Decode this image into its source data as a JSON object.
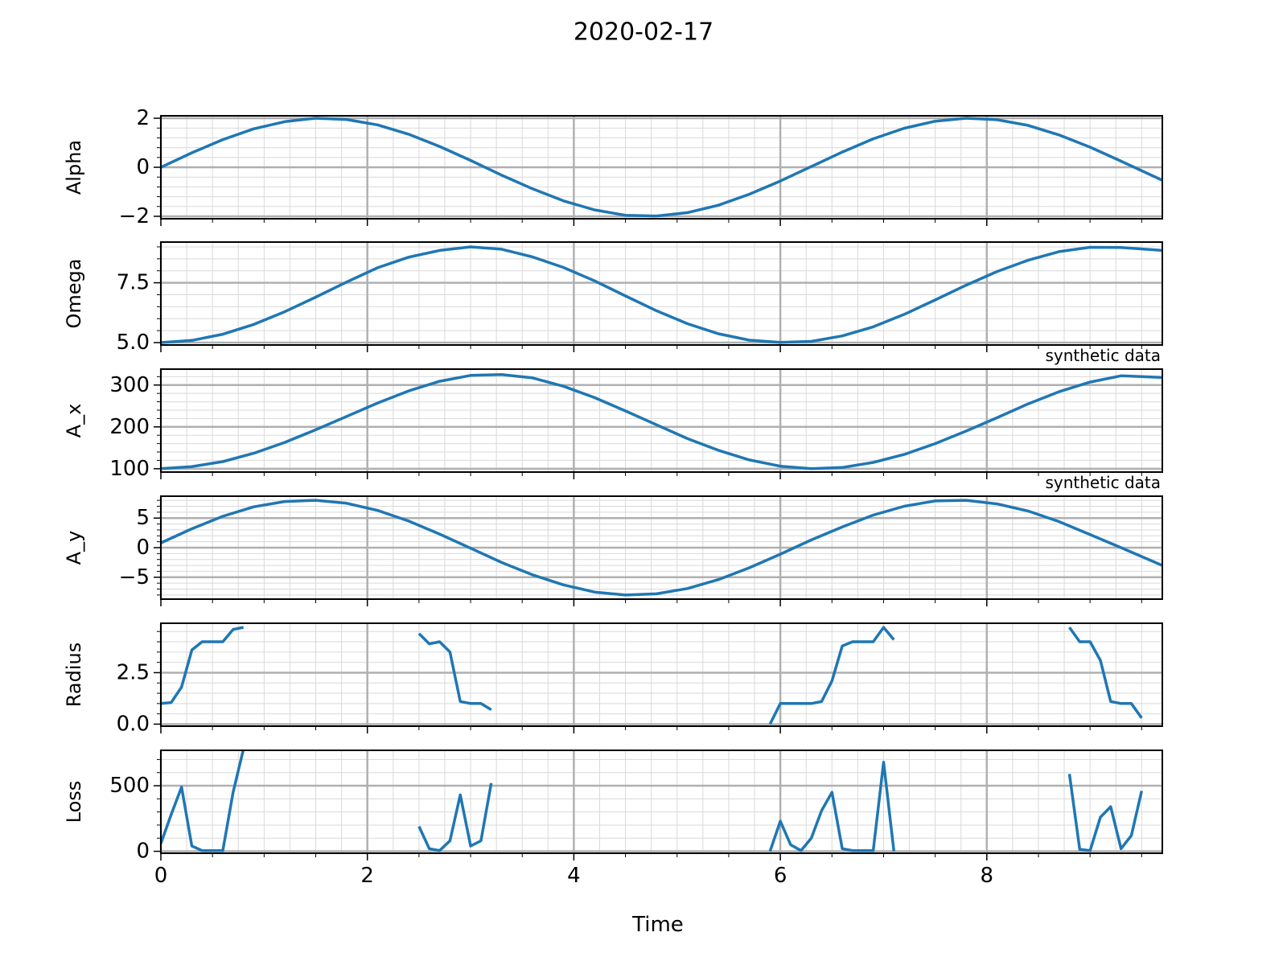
{
  "figure": {
    "title": "2020-02-17",
    "xlabel": "Time",
    "line_color": "#1f77b4",
    "grid_major_color": "#b0b0b0",
    "grid_minor_color": "#d9d9d9"
  },
  "chart_data": [
    {
      "type": "line",
      "ylabel": "Alpha",
      "xlim": [
        0,
        9.7
      ],
      "ylim": [
        -2.1,
        2.1
      ],
      "xticks": [
        0,
        2,
        4,
        6,
        8
      ],
      "yticks": [
        -2,
        0,
        2
      ],
      "ytick_labels": [
        "−2",
        "0",
        "2"
      ],
      "grid": true,
      "annotation": "",
      "series": [
        {
          "x": [
            0,
            0.3,
            0.6,
            0.9,
            1.2,
            1.5,
            1.8,
            2.1,
            2.4,
            2.7,
            3.0,
            3.3,
            3.6,
            3.9,
            4.2,
            4.5,
            4.8,
            5.1,
            5.4,
            5.7,
            6.0,
            6.3,
            6.6,
            6.9,
            7.2,
            7.5,
            7.8,
            8.1,
            8.4,
            8.7,
            9.0,
            9.3,
            9.7
          ],
          "y": [
            0.0,
            0.59,
            1.13,
            1.57,
            1.86,
            2.0,
            1.95,
            1.73,
            1.35,
            0.85,
            0.28,
            -0.32,
            -0.88,
            -1.37,
            -1.74,
            -1.96,
            -1.99,
            -1.85,
            -1.55,
            -1.1,
            -0.56,
            0.03,
            0.62,
            1.16,
            1.59,
            1.88,
            2.0,
            1.94,
            1.71,
            1.32,
            0.82,
            0.25,
            -0.53
          ]
        }
      ]
    },
    {
      "type": "line",
      "ylabel": "Omega",
      "xlim": [
        0,
        9.7
      ],
      "ylim": [
        4.9,
        9.2
      ],
      "xticks": [
        0,
        2,
        4,
        6,
        8
      ],
      "yticks": [
        5.0,
        7.5
      ],
      "ytick_labels": [
        "5.0",
        "7.5"
      ],
      "grid": true,
      "annotation": "",
      "series": [
        {
          "x": [
            0,
            0.3,
            0.6,
            0.9,
            1.2,
            1.5,
            1.8,
            2.1,
            2.4,
            2.7,
            3.0,
            3.3,
            3.6,
            3.9,
            4.2,
            4.5,
            4.8,
            5.1,
            5.4,
            5.7,
            6.0,
            6.3,
            6.6,
            6.9,
            7.2,
            7.5,
            7.8,
            8.1,
            8.4,
            8.7,
            9.0,
            9.3,
            9.7
          ],
          "y": [
            5.0,
            5.09,
            5.35,
            5.76,
            6.29,
            6.9,
            7.53,
            8.13,
            8.57,
            8.85,
            9.0,
            8.9,
            8.58,
            8.14,
            7.58,
            6.95,
            6.33,
            5.79,
            5.37,
            5.1,
            5.01,
            5.05,
            5.28,
            5.66,
            6.18,
            6.78,
            7.4,
            7.97,
            8.44,
            8.8,
            8.98,
            8.97,
            8.85
          ]
        }
      ]
    },
    {
      "type": "line",
      "ylabel": "A_x",
      "xlim": [
        0,
        9.7
      ],
      "ylim": [
        92,
        338
      ],
      "xticks": [
        0,
        2,
        4,
        6,
        8
      ],
      "yticks": [
        100,
        200,
        300
      ],
      "ytick_labels": [
        "100",
        "200",
        "300"
      ],
      "grid": true,
      "annotation": "synthetic data",
      "series": [
        {
          "x": [
            0,
            0.3,
            0.6,
            0.9,
            1.2,
            1.5,
            1.8,
            2.1,
            2.4,
            2.7,
            3.0,
            3.3,
            3.6,
            3.9,
            4.2,
            4.5,
            4.8,
            5.1,
            5.4,
            5.7,
            6.0,
            6.3,
            6.6,
            6.9,
            7.2,
            7.5,
            7.8,
            8.1,
            8.4,
            8.7,
            9.0,
            9.3,
            9.7
          ],
          "y": [
            100,
            105,
            117,
            137,
            163,
            193,
            225,
            257,
            286,
            309,
            323,
            325,
            317,
            297,
            270,
            238,
            205,
            172,
            144,
            121,
            106,
            100,
            103,
            115,
            134,
            160,
            190,
            222,
            255,
            284,
            307,
            322,
            318
          ]
        }
      ]
    },
    {
      "type": "line",
      "ylabel": "A_y",
      "xlim": [
        0,
        9.7
      ],
      "ylim": [
        -8.7,
        8.7
      ],
      "xticks": [
        0,
        2,
        4,
        6,
        8
      ],
      "yticks": [
        -5,
        0,
        5
      ],
      "ytick_labels": [
        "−5",
        "0",
        "5"
      ],
      "grid": true,
      "annotation": "synthetic data",
      "series": [
        {
          "x": [
            0,
            0.3,
            0.6,
            0.9,
            1.2,
            1.5,
            1.8,
            2.1,
            2.4,
            2.7,
            3.0,
            3.3,
            3.6,
            3.9,
            4.2,
            4.5,
            4.8,
            5.1,
            5.4,
            5.7,
            6.0,
            6.3,
            6.6,
            6.9,
            7.2,
            7.5,
            7.8,
            8.1,
            8.4,
            8.7,
            9.0,
            9.3,
            9.7
          ],
          "y": [
            0.8,
            3.2,
            5.3,
            6.9,
            7.8,
            8.0,
            7.5,
            6.3,
            4.5,
            2.3,
            -0.1,
            -2.5,
            -4.6,
            -6.3,
            -7.5,
            -8.0,
            -7.8,
            -6.9,
            -5.4,
            -3.4,
            -1.1,
            1.3,
            3.5,
            5.5,
            7.0,
            7.9,
            8.0,
            7.4,
            6.2,
            4.4,
            2.2,
            0.0,
            -3.0
          ]
        }
      ]
    },
    {
      "type": "line",
      "ylabel": "Radius",
      "xlim": [
        0,
        9.7
      ],
      "ylim": [
        -0.1,
        4.9
      ],
      "xticks": [
        0,
        2,
        4,
        6,
        8
      ],
      "yticks": [
        0.0,
        2.5
      ],
      "ytick_labels": [
        "0.0",
        "2.5"
      ],
      "grid": true,
      "annotation": "",
      "series": [
        {
          "x": [
            0,
            0.1,
            0.2,
            0.3,
            0.4,
            0.5,
            0.6,
            0.7,
            0.8
          ],
          "y": [
            1.0,
            1.05,
            1.8,
            3.6,
            4.0,
            4.0,
            4.0,
            4.6,
            4.7
          ]
        },
        {
          "x": [
            2.5,
            2.6,
            2.7,
            2.8,
            2.9,
            3.0,
            3.1,
            3.2
          ],
          "y": [
            4.4,
            3.9,
            4.0,
            3.5,
            1.1,
            1.0,
            1.0,
            0.7
          ]
        },
        {
          "x": [
            5.9,
            6.0,
            6.1,
            6.2,
            6.3,
            6.4,
            6.5,
            6.6,
            6.7,
            6.8,
            6.9,
            7.0,
            7.1
          ],
          "y": [
            0.0,
            1.0,
            1.0,
            1.0,
            1.0,
            1.1,
            2.1,
            3.8,
            4.0,
            4.0,
            4.0,
            4.7,
            4.1
          ]
        },
        {
          "x": [
            8.8,
            8.9,
            9.0,
            9.1,
            9.2,
            9.3,
            9.4,
            9.5
          ],
          "y": [
            4.7,
            4.0,
            4.0,
            3.1,
            1.1,
            1.0,
            1.0,
            0.3
          ]
        }
      ]
    },
    {
      "type": "line",
      "ylabel": "Loss",
      "xlim": [
        0,
        9.7
      ],
      "ylim": [
        -15,
        770
      ],
      "xticks": [
        0,
        2,
        4,
        6,
        8
      ],
      "yticks": [
        0,
        500
      ],
      "ytick_labels": [
        "0",
        "500"
      ],
      "xtick_labels": [
        "0",
        "2",
        "4",
        "6",
        "8"
      ],
      "grid": true,
      "annotation": "",
      "series": [
        {
          "x": [
            0,
            0.1,
            0.2,
            0.3,
            0.4,
            0.5,
            0.6,
            0.7,
            0.8
          ],
          "y": [
            60,
            280,
            490,
            40,
            5,
            5,
            5,
            450,
            780
          ]
        },
        {
          "x": [
            2.5,
            2.6,
            2.7,
            2.8,
            2.9,
            3.0,
            3.1,
            3.2
          ],
          "y": [
            190,
            20,
            5,
            80,
            430,
            40,
            80,
            520
          ]
        },
        {
          "x": [
            5.9,
            6.0,
            6.1,
            6.2,
            6.3,
            6.4,
            6.5,
            6.6,
            6.7,
            6.8,
            6.9,
            7.0,
            7.1
          ],
          "y": [
            0,
            230,
            50,
            5,
            100,
            310,
            450,
            20,
            5,
            5,
            5,
            680,
            0
          ]
        },
        {
          "x": [
            8.8,
            8.9,
            9.0,
            9.1,
            9.2,
            9.3,
            9.4,
            9.5
          ],
          "y": [
            590,
            15,
            5,
            260,
            340,
            20,
            120,
            460
          ]
        }
      ]
    }
  ]
}
